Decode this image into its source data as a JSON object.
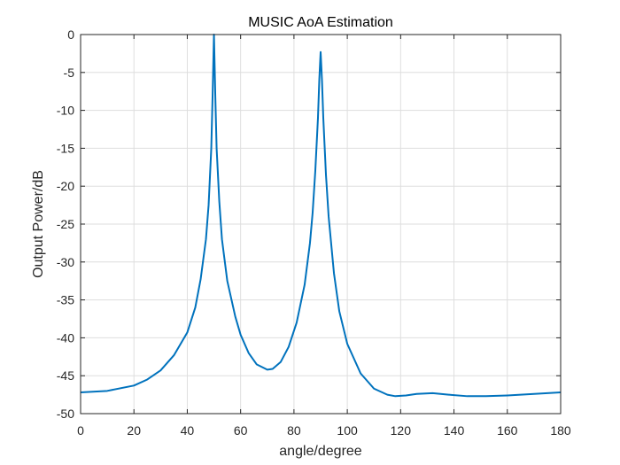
{
  "chart_data": {
    "type": "line",
    "title": "MUSIC AoA Estimation",
    "xlabel": "angle/degree",
    "ylabel": "Output Power/dB",
    "xlim": [
      0,
      180
    ],
    "ylim": [
      -50,
      0
    ],
    "xticks": [
      "0",
      "20",
      "40",
      "60",
      "80",
      "100",
      "120",
      "140",
      "160",
      "180"
    ],
    "yticks": [
      "0",
      "-5",
      "-10",
      "-15",
      "-20",
      "-25",
      "-30",
      "-35",
      "-40",
      "-45",
      "-50"
    ],
    "grid": true,
    "line_color": "#0072BD",
    "series": [
      {
        "x": [
          0,
          10,
          20,
          25,
          30,
          35,
          40,
          43,
          45,
          47,
          48,
          49,
          49.5,
          50,
          50.5,
          51,
          52,
          53,
          55,
          58,
          60,
          63,
          66,
          70,
          72,
          75,
          78,
          81,
          84,
          86,
          87,
          88,
          89,
          89.5,
          90,
          90.5,
          91,
          92,
          93,
          95,
          97,
          100,
          105,
          110,
          115,
          118,
          122,
          126,
          132,
          138,
          145,
          152,
          160,
          170,
          180
        ],
        "y": [
          -47.2,
          -47.0,
          -46.3,
          -45.5,
          -44.3,
          -42.3,
          -39.3,
          -36.0,
          -32.3,
          -27.0,
          -22.5,
          -15.0,
          -8.0,
          0,
          -8.0,
          -15.0,
          -22.0,
          -27.0,
          -32.5,
          -37.2,
          -39.6,
          -42.0,
          -43.5,
          -44.2,
          -44.1,
          -43.2,
          -41.2,
          -38.0,
          -33.0,
          -27.5,
          -23.5,
          -18.0,
          -11.0,
          -6.0,
          -2.3,
          -6.0,
          -11.0,
          -18.5,
          -24.0,
          -31.5,
          -36.5,
          -40.8,
          -44.7,
          -46.7,
          -47.5,
          -47.7,
          -47.6,
          -47.4,
          -47.3,
          -47.5,
          -47.7,
          -47.7,
          -47.6,
          -47.4,
          -47.2
        ]
      }
    ]
  }
}
